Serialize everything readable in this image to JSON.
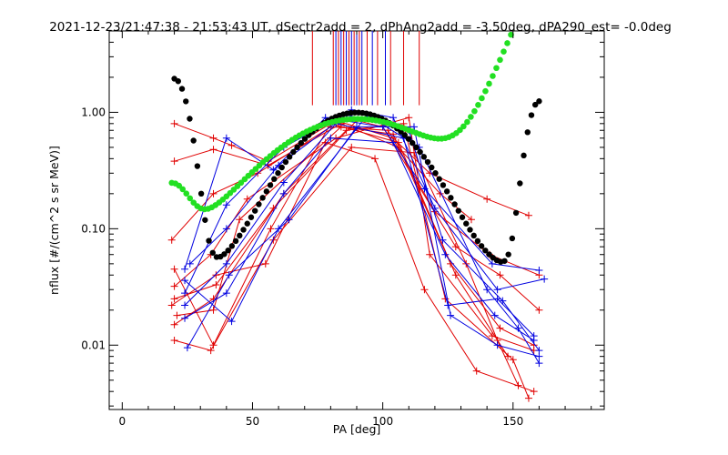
{
  "chart_data": {
    "type": "scatter",
    "title": "2021-12-23/21:47:38 - 21:53:43 UT, dSectr2add = 2, dPhAng2add = -3.50deg, dPA290_est=  -0.0deg",
    "xlabel": "PA [deg]",
    "ylabel": "nflux [#/(cm^2 s sr MeV)]",
    "xlim": [
      -5,
      185
    ],
    "ylim": [
      0.0028,
      5.0
    ],
    "yscale": "log",
    "grid": false,
    "x_ticks": [
      {
        "value": 0,
        "label": "0"
      },
      {
        "value": 50,
        "label": "50"
      },
      {
        "value": 100,
        "label": "100"
      },
      {
        "value": 150,
        "label": "150"
      }
    ],
    "y_ticks": [
      {
        "value": 0.01,
        "label": "0.01"
      },
      {
        "value": 0.1,
        "label": "0.10"
      },
      {
        "value": 1.0,
        "label": "1.00"
      }
    ],
    "colors": {
      "red": "#e00000",
      "blue": "#0000e0",
      "black": "#000000",
      "green": "#22e022"
    },
    "black_fit": {
      "name": "",
      "color": "#000000",
      "x_range": [
        20,
        160
      ],
      "samples": 96,
      "formula": "0.95*sin(PA)^9 + 1.9*exp(-((PA-20)/6.5)^2) + 1.2*exp(-((PA-160)/5.5)^2) + 0.045"
    },
    "green_fit": {
      "name": "",
      "color": "#22e022",
      "x_range": [
        19,
        152
      ],
      "samples": 96,
      "formula": "0.77*sin(PA)^5 + 0.14*exp(-((PA-19)/8)^2) + 6.4*exp(-((152-PA)/8)) + 0.105"
    },
    "vertical_markers": [
      {
        "x": 73,
        "color": "#e00000",
        "y_bottom": 1.15
      },
      {
        "x": 81,
        "color": "#e00000",
        "y_bottom": 1.15
      },
      {
        "x": 82,
        "color": "#0000e0",
        "y_bottom": 1.15
      },
      {
        "x": 83,
        "color": "#e00000",
        "y_bottom": 1.15
      },
      {
        "x": 84,
        "color": "#0000e0",
        "y_bottom": 1.15
      },
      {
        "x": 85,
        "color": "#e00000",
        "y_bottom": 1.15
      },
      {
        "x": 86,
        "color": "#0000e0",
        "y_bottom": 1.15
      },
      {
        "x": 87,
        "color": "#e00000",
        "y_bottom": 1.15
      },
      {
        "x": 88,
        "color": "#0000e0",
        "y_bottom": 1.15
      },
      {
        "x": 89,
        "color": "#e00000",
        "y_bottom": 1.15
      },
      {
        "x": 90,
        "color": "#0000e0",
        "y_bottom": 1.15
      },
      {
        "x": 91,
        "color": "#e00000",
        "y_bottom": 1.15
      },
      {
        "x": 92,
        "color": "#0000e0",
        "y_bottom": 1.15
      },
      {
        "x": 94,
        "color": "#e00000",
        "y_bottom": 1.15
      },
      {
        "x": 96,
        "color": "#0000e0",
        "y_bottom": 1.15
      },
      {
        "x": 98,
        "color": "#e00000",
        "y_bottom": 1.15
      },
      {
        "x": 101,
        "color": "#0000e0",
        "y_bottom": 1.15
      },
      {
        "x": 103,
        "color": "#e00000",
        "y_bottom": 1.15
      },
      {
        "x": 108,
        "color": "#e00000",
        "y_bottom": 1.15
      },
      {
        "x": 114,
        "color": "#e00000",
        "y_bottom": 1.15
      }
    ],
    "series": [
      {
        "color": "red",
        "points": [
          [
            20,
            0.8
          ],
          [
            35,
            0.6
          ],
          [
            42,
            0.52
          ],
          [
            56,
            0.38
          ],
          [
            82,
            0.85
          ],
          [
            104,
            0.6
          ],
          [
            118,
            0.3
          ],
          [
            140,
            0.18
          ],
          [
            156,
            0.13
          ]
        ]
      },
      {
        "color": "red",
        "points": [
          [
            20,
            0.38
          ],
          [
            35,
            0.48
          ],
          [
            56,
            0.35
          ],
          [
            84,
            0.8
          ],
          [
            106,
            0.5
          ],
          [
            122,
            0.2
          ],
          [
            134,
            0.12
          ]
        ]
      },
      {
        "color": "red",
        "points": [
          [
            19,
            0.08
          ],
          [
            35,
            0.2
          ],
          [
            52,
            0.3
          ],
          [
            80,
            0.75
          ],
          [
            102,
            0.7
          ],
          [
            120,
            0.14
          ],
          [
            141,
            0.06
          ],
          [
            160,
            0.04
          ]
        ]
      },
      {
        "color": "red",
        "points": [
          [
            20,
            0.032
          ],
          [
            34,
            0.06
          ],
          [
            48,
            0.18
          ],
          [
            82,
            0.6
          ],
          [
            110,
            0.9
          ],
          [
            118,
            0.06
          ],
          [
            142,
            0.012
          ],
          [
            158,
            0.009
          ]
        ]
      },
      {
        "color": "red",
        "points": [
          [
            19,
            0.022
          ],
          [
            36,
            0.04
          ],
          [
            55,
            0.05
          ],
          [
            78,
            0.55
          ],
          [
            97,
            0.4
          ],
          [
            116,
            0.03
          ],
          [
            136,
            0.006
          ],
          [
            158,
            0.004
          ]
        ]
      },
      {
        "color": "red",
        "points": [
          [
            20,
            0.015
          ],
          [
            35,
            0.025
          ],
          [
            62,
            0.2
          ],
          [
            86,
            0.7
          ],
          [
            108,
            0.8
          ],
          [
            124,
            0.025
          ],
          [
            150,
            0.0075
          ],
          [
            156,
            0.0035
          ]
        ]
      },
      {
        "color": "red",
        "points": [
          [
            20,
            0.011
          ],
          [
            34,
            0.009
          ],
          [
            58,
            0.08
          ],
          [
            88,
            0.5
          ],
          [
            112,
            0.45
          ],
          [
            132,
            0.05
          ],
          [
            144,
            0.011
          ],
          [
            152,
            0.0045
          ]
        ]
      },
      {
        "color": "red",
        "points": [
          [
            21,
            0.018
          ],
          [
            35,
            0.02
          ],
          [
            45,
            0.12
          ],
          [
            84,
            0.75
          ],
          [
            104,
            0.65
          ],
          [
            126,
            0.05
          ],
          [
            145,
            0.014
          ],
          [
            158,
            0.01
          ]
        ]
      },
      {
        "color": "red",
        "points": [
          [
            20,
            0.025
          ],
          [
            36,
            0.033
          ],
          [
            58,
            0.15
          ],
          [
            90,
            0.85
          ],
          [
            100,
            0.75
          ],
          [
            128,
            0.07
          ],
          [
            145,
            0.04
          ],
          [
            160,
            0.02
          ]
        ]
      },
      {
        "color": "red",
        "points": [
          [
            20,
            0.045
          ],
          [
            35,
            0.01
          ],
          [
            57,
            0.1
          ],
          [
            80,
            0.8
          ],
          [
            106,
            0.55
          ],
          [
            128,
            0.04
          ],
          [
            148,
            0.008
          ]
        ]
      },
      {
        "color": "blue",
        "points": [
          [
            24,
            0.045
          ],
          [
            40,
            0.6
          ],
          [
            58,
            0.32
          ],
          [
            78,
            0.9
          ],
          [
            100,
            0.75
          ],
          [
            116,
            0.22
          ],
          [
            142,
            0.05
          ],
          [
            160,
            0.044
          ]
        ]
      },
      {
        "color": "blue",
        "points": [
          [
            24,
            0.028
          ],
          [
            40,
            0.16
          ],
          [
            62,
            0.5
          ],
          [
            88,
            1.05
          ],
          [
            104,
            0.9
          ],
          [
            120,
            0.15
          ],
          [
            144,
            0.03
          ],
          [
            162,
            0.037
          ]
        ]
      },
      {
        "color": "blue",
        "points": [
          [
            26,
            0.05
          ],
          [
            40,
            0.1
          ],
          [
            60,
            0.35
          ],
          [
            86,
            0.95
          ],
          [
            110,
            0.7
          ],
          [
            123,
            0.08
          ],
          [
            146,
            0.024
          ],
          [
            160,
            0.009
          ]
        ]
      },
      {
        "color": "blue",
        "points": [
          [
            24,
            0.022
          ],
          [
            40,
            0.05
          ],
          [
            62,
            0.25
          ],
          [
            82,
            0.8
          ],
          [
            108,
            0.6
          ],
          [
            125,
            0.022
          ],
          [
            144,
            0.025
          ],
          [
            158,
            0.012
          ]
        ]
      },
      {
        "color": "blue",
        "points": [
          [
            25,
            0.0095
          ],
          [
            41,
            0.04
          ],
          [
            64,
            0.12
          ],
          [
            90,
            0.75
          ],
          [
            112,
            0.75
          ],
          [
            126,
            0.018
          ],
          [
            144,
            0.01
          ],
          [
            160,
            0.008
          ]
        ]
      },
      {
        "color": "blue",
        "points": [
          [
            24,
            0.036
          ],
          [
            42,
            0.016
          ],
          [
            60,
            0.1
          ],
          [
            94,
            0.95
          ],
          [
            114,
            0.5
          ],
          [
            140,
            0.03
          ],
          [
            152,
            0.014
          ],
          [
            160,
            0.007
          ]
        ]
      },
      {
        "color": "blue",
        "points": [
          [
            24,
            0.017
          ],
          [
            40,
            0.028
          ],
          [
            62,
            0.2
          ],
          [
            80,
            0.6
          ],
          [
            104,
            0.55
          ],
          [
            124,
            0.06
          ],
          [
            143,
            0.018
          ],
          [
            158,
            0.011
          ]
        ]
      }
    ]
  }
}
